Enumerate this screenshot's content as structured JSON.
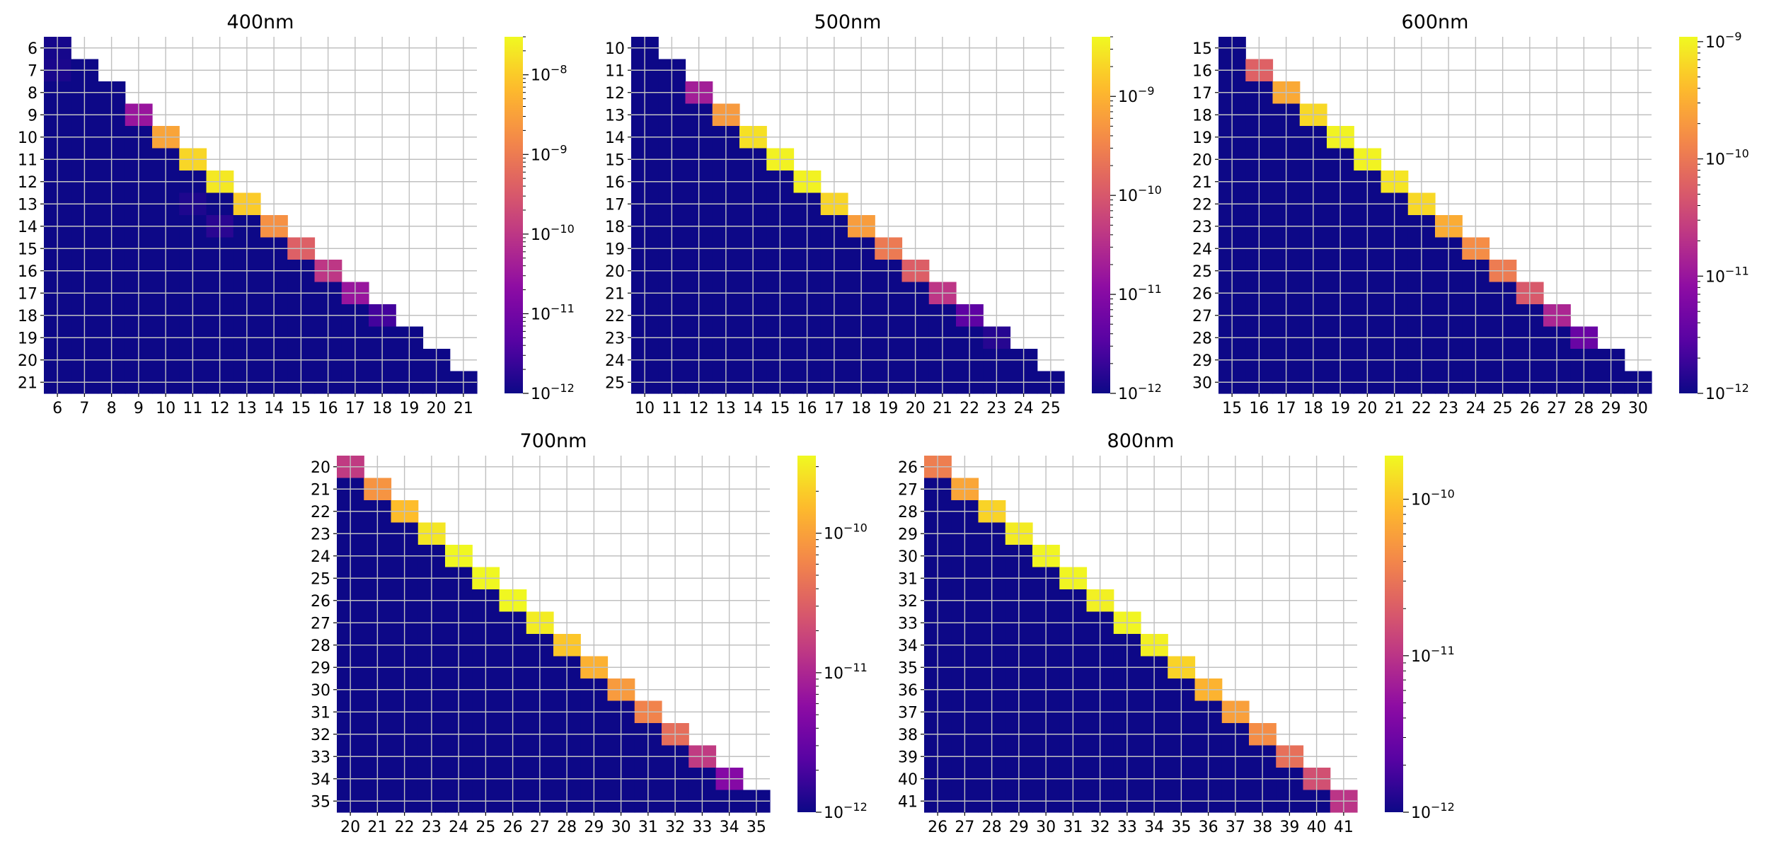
{
  "chart_data": [
    {
      "type": "heatmap",
      "title": "400nm",
      "labels": [
        "6",
        "7",
        "8",
        "9",
        "10",
        "11",
        "12",
        "13",
        "14",
        "15",
        "16",
        "17",
        "18",
        "19",
        "20",
        "21"
      ],
      "diagonal": [
        1.2e-12,
        1e-12,
        1e-12,
        3e-11,
        3.5e-09,
        1.3e-08,
        2e-08,
        1e-08,
        2e-09,
        4e-10,
        1e-10,
        3e-11,
        3e-12,
        1e-12,
        1e-12,
        1e-12
      ],
      "off_diagonal": [
        {
          "row": "7",
          "col": "6",
          "value": 1.3e-12
        },
        {
          "row": "13",
          "col": "11",
          "value": 1.4e-12
        },
        {
          "row": "14",
          "col": "12",
          "value": 1.8e-12
        },
        {
          "row": "18",
          "col": "18",
          "value": 3e-12
        }
      ],
      "colorbar": {
        "scale": "log",
        "vmin": 1e-12,
        "vmax": 3e-08,
        "ticks": [
          {
            "value": 1e-08,
            "label": "10",
            "exp": "−8"
          },
          {
            "value": 1e-09,
            "label": "10",
            "exp": "−9"
          },
          {
            "value": 1e-10,
            "label": "10",
            "exp": "−10"
          },
          {
            "value": 1e-11,
            "label": "10",
            "exp": "−11"
          },
          {
            "value": 1e-12,
            "label": "10",
            "exp": "−12"
          }
        ]
      }
    },
    {
      "type": "heatmap",
      "title": "500nm",
      "labels": [
        "10",
        "11",
        "12",
        "13",
        "14",
        "15",
        "16",
        "17",
        "18",
        "19",
        "20",
        "21",
        "22",
        "23",
        "24",
        "25"
      ],
      "diagonal": [
        1e-12,
        1e-12,
        2e-11,
        5.5e-10,
        2.5e-09,
        3.5e-09,
        3.5e-09,
        2e-09,
        6e-10,
        2.5e-10,
        1.2e-10,
        4e-11,
        4e-12,
        1.5e-12,
        1e-12,
        1e-12
      ],
      "off_diagonal": [],
      "colorbar": {
        "scale": "log",
        "vmin": 1e-12,
        "vmax": 4e-09,
        "ticks": [
          {
            "value": 1e-09,
            "label": "10",
            "exp": "−9"
          },
          {
            "value": 1e-10,
            "label": "10",
            "exp": "−10"
          },
          {
            "value": 1e-11,
            "label": "10",
            "exp": "−11"
          },
          {
            "value": 1e-12,
            "label": "10",
            "exp": "−12"
          }
        ]
      }
    },
    {
      "type": "heatmap",
      "title": "600nm",
      "labels": [
        "15",
        "16",
        "17",
        "18",
        "19",
        "20",
        "21",
        "22",
        "23",
        "24",
        "25",
        "26",
        "27",
        "28",
        "29",
        "30"
      ],
      "diagonal": [
        1e-12,
        6e-11,
        2.8e-10,
        6.5e-10,
        1e-09,
        1e-09,
        8e-10,
        6.5e-10,
        3e-10,
        1.6e-10,
        1.1e-10,
        5e-11,
        1.5e-11,
        4e-12,
        1e-12,
        1e-12
      ],
      "off_diagonal": [],
      "colorbar": {
        "scale": "log",
        "vmin": 1e-12,
        "vmax": 1.1e-09,
        "ticks": [
          {
            "value": 1e-09,
            "label": "10",
            "exp": "−9"
          },
          {
            "value": 1e-10,
            "label": "10",
            "exp": "−10"
          },
          {
            "value": 1e-11,
            "label": "10",
            "exp": "−11"
          },
          {
            "value": 1e-12,
            "label": "10",
            "exp": "−12"
          }
        ]
      }
    },
    {
      "type": "heatmap",
      "title": "700nm",
      "labels": [
        "20",
        "21",
        "22",
        "23",
        "24",
        "25",
        "26",
        "27",
        "28",
        "29",
        "30",
        "31",
        "32",
        "33",
        "34",
        "35"
      ],
      "diagonal": [
        1.5e-11,
        8e-11,
        1.6e-10,
        2.8e-10,
        3.5e-10,
        3.5e-10,
        3.5e-10,
        3e-10,
        1.8e-10,
        1.3e-10,
        9e-11,
        6e-11,
        4e-11,
        1.5e-11,
        5e-12,
        1e-12
      ],
      "off_diagonal": [],
      "colorbar": {
        "scale": "log",
        "vmin": 1e-12,
        "vmax": 3.6e-10,
        "ticks": [
          {
            "value": 1e-10,
            "label": "10",
            "exp": "−10"
          },
          {
            "value": 1e-11,
            "label": "10",
            "exp": "−11"
          },
          {
            "value": 1e-12,
            "label": "10",
            "exp": "−12"
          }
        ]
      }
    },
    {
      "type": "heatmap",
      "title": "800nm",
      "labels": [
        "26",
        "27",
        "28",
        "29",
        "30",
        "31",
        "32",
        "33",
        "34",
        "35",
        "36",
        "37",
        "38",
        "39",
        "40",
        "41"
      ],
      "diagonal": [
        3.5e-11,
        6.5e-11,
        1.2e-10,
        1.6e-10,
        1.8e-10,
        1.8e-10,
        1.7e-10,
        1.8e-10,
        1.7e-10,
        1.2e-10,
        8e-11,
        6e-11,
        4.5e-11,
        2.8e-11,
        1.6e-11,
        1e-11
      ],
      "off_diagonal": [],
      "colorbar": {
        "scale": "log",
        "vmin": 1e-12,
        "vmax": 1.9e-10,
        "ticks": [
          {
            "value": 1e-10,
            "label": "10",
            "exp": "−10"
          },
          {
            "value": 1e-11,
            "label": "10",
            "exp": "−11"
          },
          {
            "value": 1e-12,
            "label": "10",
            "exp": "−12"
          }
        ]
      }
    }
  ],
  "colors": {
    "background_cell": "#0d0887",
    "gridline": "#c0c0c0",
    "colormap": "plasma"
  }
}
